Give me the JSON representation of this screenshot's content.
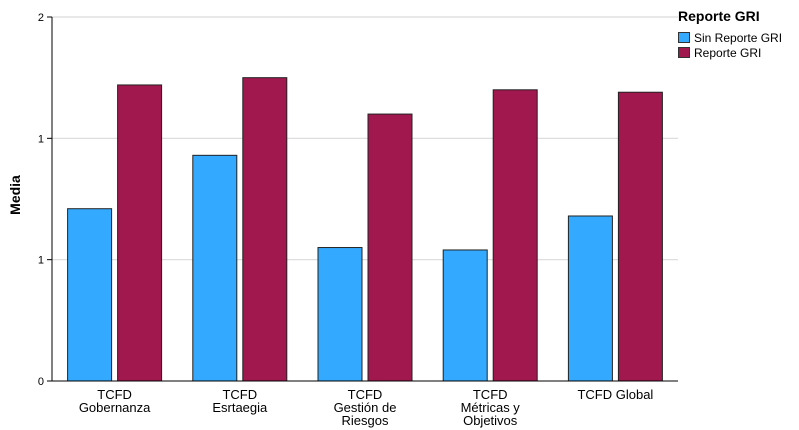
{
  "chart_data": {
    "type": "bar",
    "categories": [
      [
        "TCFD",
        "Gobernanza"
      ],
      [
        "TCFD",
        "Esrtaegia"
      ],
      [
        "TCFD",
        "Gestión de",
        "Riesgos"
      ],
      [
        "TCFD",
        "Métricas y",
        "Objetivos"
      ],
      [
        "TCFD Global"
      ]
    ],
    "series": [
      {
        "name": "Sin Reporte GRI",
        "color": "#33aaff",
        "values": [
          0.71,
          0.93,
          0.55,
          0.54,
          0.68
        ]
      },
      {
        "name": "Reporte GRI",
        "color": "#a0184e",
        "values": [
          1.22,
          1.25,
          1.1,
          1.2,
          1.19
        ]
      }
    ],
    "ylabel": "Media",
    "xlabel": "",
    "ylim": [
      0,
      1.5
    ],
    "yticks": [
      0,
      0.5,
      1.0,
      1.5
    ],
    "ytick_labels": [
      "0",
      "1",
      "1",
      "2"
    ],
    "grid": true,
    "legend": {
      "title": "Reporte GRI",
      "placement": "top-right"
    }
  }
}
